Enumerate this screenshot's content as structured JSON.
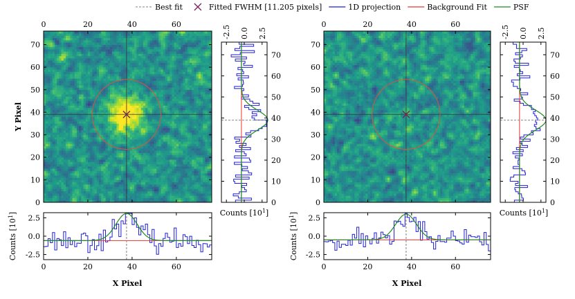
{
  "legend": {
    "items": [
      {
        "label": "Best fit",
        "color": "#808080",
        "kind": "dash"
      },
      {
        "label": "Fitted FWHM [11.205 pixels]",
        "color": "#7b1f5a",
        "kind": "cross"
      },
      {
        "label": "1D projection",
        "color": "#1f1fd8",
        "kind": "line"
      },
      {
        "label": "Background Fit",
        "color": "#e8352b",
        "kind": "line"
      },
      {
        "label": "PSF",
        "color": "#1e8a1e",
        "kind": "line"
      }
    ]
  },
  "labels": {
    "y_pixel": "Y Pixel",
    "x_pixel": "X Pixel",
    "counts_bottom": "Counts [10",
    "counts_exp": "1",
    "counts_close": "]"
  },
  "chart_data": [
    {
      "type": "heatmap",
      "name": "left-image",
      "title": "",
      "xlabel": "X Pixel",
      "ylabel": "Y Pixel",
      "x_range": [
        0,
        76
      ],
      "y_range": [
        0,
        76
      ],
      "x_ticks": [
        0,
        20,
        40,
        60
      ],
      "y_ticks": [
        0,
        10,
        20,
        30,
        40,
        50,
        60,
        70
      ],
      "best_fit": {
        "x": 37.5,
        "y": 39
      },
      "fwhm_pixels": 11.205,
      "circle_radius": 15.5,
      "source_amplitude": 2.5,
      "colormap": "viridis"
    },
    {
      "type": "heatmap",
      "name": "right-image",
      "title": "",
      "xlabel": "X Pixel",
      "ylabel": "Y Pixel",
      "x_range": [
        0,
        76
      ],
      "y_range": [
        0,
        76
      ],
      "x_ticks": [
        0,
        20,
        40,
        60
      ],
      "y_ticks": [
        0,
        10,
        20,
        30,
        40,
        50,
        60,
        70
      ],
      "best_fit": {
        "x": 37.5,
        "y": 39
      },
      "fwhm_pixels": 11.205,
      "circle_radius": 15.5,
      "source_amplitude": 0.0,
      "colormap": "viridis"
    },
    {
      "type": "line",
      "name": "left-x-projection",
      "xlabel": "X Pixel",
      "ylabel": "Counts [10^1]",
      "xlim": [
        0,
        76
      ],
      "ylim": [
        -3.2,
        3.2
      ],
      "x_ticks": [
        0,
        20,
        40,
        60
      ],
      "y_ticks": [
        -2.5,
        0.0,
        2.5
      ],
      "psf": {
        "center": 37.5,
        "fwhm": 11.205,
        "amplitude": 3.1,
        "baseline": -0.6
      },
      "background": -0.6
    },
    {
      "type": "line",
      "name": "left-y-projection",
      "xlabel": "Counts [10^1]",
      "ylabel": "",
      "xlim": [
        -3.2,
        3.2
      ],
      "ylim": [
        0,
        76
      ],
      "x_ticks": [
        -2.5,
        0.0,
        2.5
      ],
      "y_ticks": [
        0,
        10,
        20,
        30,
        40,
        50,
        60,
        70
      ],
      "psf": {
        "center": 39,
        "fwhm": 11.205,
        "amplitude": 3.3,
        "baseline": -0.4
      },
      "background": -0.4
    },
    {
      "type": "line",
      "name": "right-x-projection",
      "xlabel": "X Pixel",
      "ylabel": "Counts [10^1]",
      "xlim": [
        0,
        76
      ],
      "ylim": [
        -3.2,
        3.2
      ],
      "x_ticks": [
        0,
        20,
        40,
        60
      ],
      "y_ticks": [
        -2.5,
        0.0,
        2.5
      ],
      "psf": {
        "center": 37.5,
        "fwhm": 11.205,
        "amplitude": 3.0,
        "baseline": -0.5
      },
      "background": -0.5
    },
    {
      "type": "line",
      "name": "right-y-projection",
      "xlabel": "Counts [10^1]",
      "ylabel": "",
      "xlim": [
        -3.2,
        3.2
      ],
      "ylim": [
        0,
        76
      ],
      "x_ticks": [
        -2.5,
        0.0,
        2.5
      ],
      "y_ticks": [
        0,
        10,
        20,
        30,
        40,
        50,
        60,
        70
      ],
      "psf": {
        "center": 39,
        "fwhm": 11.205,
        "amplitude": 3.2,
        "baseline": -0.5
      },
      "background": -0.5
    }
  ]
}
